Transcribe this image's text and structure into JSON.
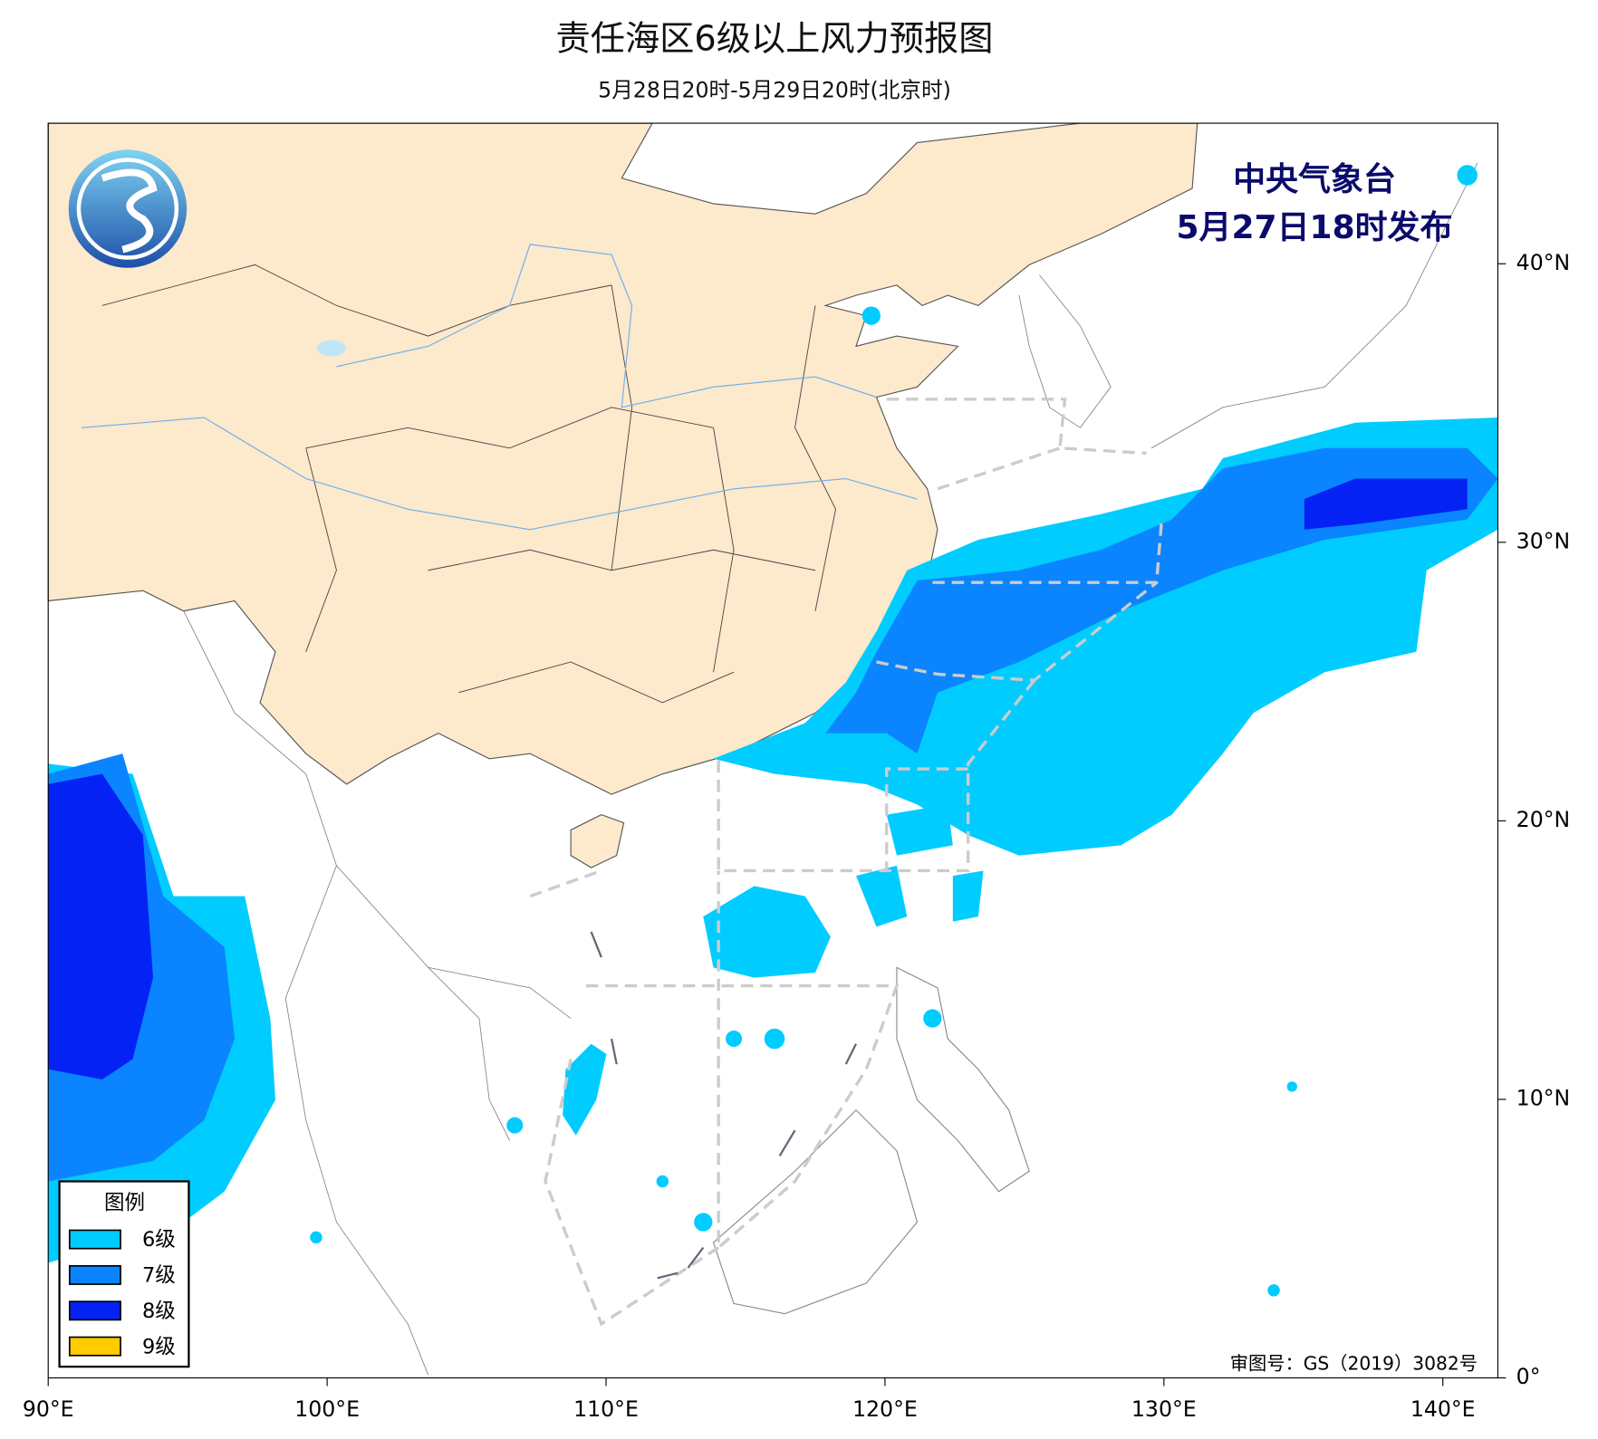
{
  "header": {
    "title": "责任海区6级以上风力预报图",
    "subtitle": "5月28日20时-5月29日20时(北京时)"
  },
  "publisher": {
    "name": "中央气象台",
    "issued": "5月27日18时发布"
  },
  "legend": {
    "title": "图例",
    "items": [
      {
        "label": "6级",
        "color": "#00ccff"
      },
      {
        "label": "7级",
        "color": "#0a85ff"
      },
      {
        "label": "8级",
        "color": "#0522f5"
      },
      {
        "label": "9级",
        "color": "#ffcc00"
      }
    ]
  },
  "map": {
    "xticks": [
      {
        "value": 90,
        "label": "90°E"
      },
      {
        "value": 100,
        "label": "100°E"
      },
      {
        "value": 110,
        "label": "110°E"
      },
      {
        "value": 120,
        "label": "120°E"
      },
      {
        "value": 130,
        "label": "130°E"
      },
      {
        "value": 140,
        "label": "140°E"
      }
    ],
    "yticks": [
      {
        "value": 0,
        "label": "0°"
      },
      {
        "value": 10,
        "label": "10°N"
      },
      {
        "value": 20,
        "label": "20°N"
      },
      {
        "value": 30,
        "label": "30°N"
      },
      {
        "value": 40,
        "label": "40°N"
      }
    ]
  },
  "approval": "审图号：GS（2019）3082号"
}
